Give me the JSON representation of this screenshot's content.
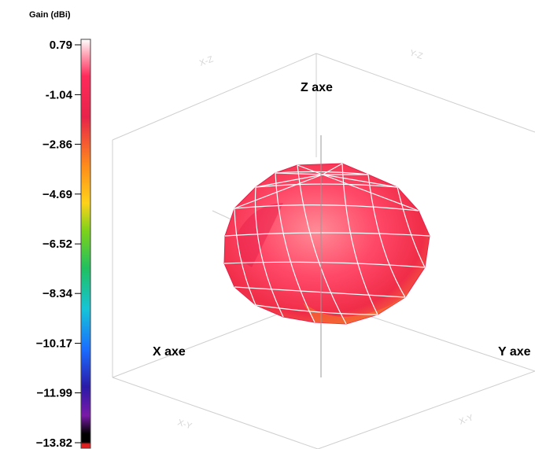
{
  "chart_data": {
    "type": "3d-radiation-pattern",
    "colorbar": {
      "title": "Gain (dBi)",
      "ticks": [
        0.79,
        -1.04,
        -2.86,
        -4.69,
        -6.52,
        -8.34,
        -10.17,
        -11.99,
        -13.82
      ],
      "tick_labels": [
        "0.79",
        "-1.04",
        "−2.86",
        "−4.69",
        "−6.52",
        "−8.34",
        "−10.17",
        "−11.99",
        "−13.82"
      ],
      "range": [
        -13.82,
        0.79
      ],
      "colors": [
        "#ffffff",
        "#ff2a5a",
        "#e8234a",
        "#ff8c1a",
        "#ffd21a",
        "#7bd21a",
        "#20c060",
        "#16c4d8",
        "#1a6cff",
        "#2a1aa8",
        "#7a1aa8",
        "#000000",
        "#e02020"
      ]
    },
    "axes": {
      "x_label": "X axe",
      "y_label": "Y axe",
      "z_label": "Z axe"
    },
    "pattern": {
      "shape": "broadside dome",
      "max_gain_dbi": 0.79,
      "surface_color": "#ff3b5f",
      "highlight_color": "#ff8b96",
      "mesh_color": "#ffffff"
    }
  },
  "faint_face_labels": [
    "X-Z",
    "Y-Z",
    "X-Y",
    "X-Y"
  ]
}
